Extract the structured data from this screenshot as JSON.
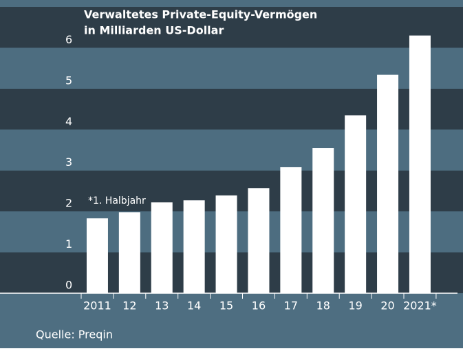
{
  "chart_data": {
    "type": "bar",
    "title": "Verwaltetes Private-Equity-Vermögen",
    "subtitle": "in Milliarden US-Dollar",
    "categories": [
      "2011",
      "12",
      "13",
      "14",
      "15",
      "16",
      "17",
      "18",
      "19",
      "20",
      "2021*"
    ],
    "values": [
      1.83,
      1.98,
      2.22,
      2.27,
      2.39,
      2.57,
      3.08,
      3.55,
      4.35,
      5.34,
      6.3
    ],
    "color": "#ffffff",
    "ylim": [
      0,
      7
    ],
    "yticks": [
      0,
      1,
      2,
      3,
      4,
      5,
      6
    ],
    "annotation": "*1. Halbjahr",
    "source": "Quelle: Preqin"
  }
}
